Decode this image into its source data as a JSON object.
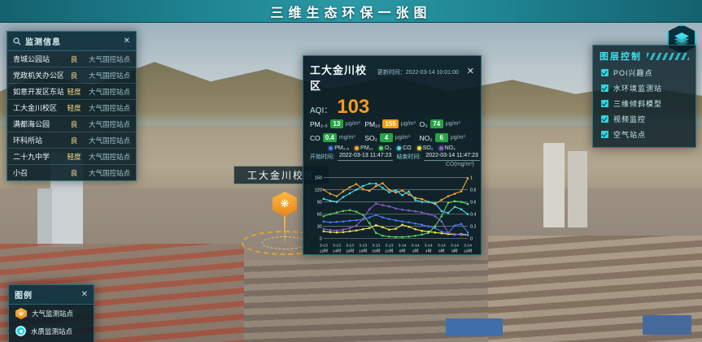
{
  "header": {
    "title": "三维生态环保一张图"
  },
  "station_panel": {
    "title": "监测信息",
    "close_label": "✕",
    "rows": [
      {
        "name": "青城公园站",
        "level": "良",
        "type": "大气国控站点"
      },
      {
        "name": "党政机关办公区",
        "level": "良",
        "type": "大气国控站点"
      },
      {
        "name": "如意开发区东站",
        "level": "轻度",
        "type": "大气国控站点"
      },
      {
        "name": "工大金川校区",
        "level": "轻度",
        "type": "大气国控站点"
      },
      {
        "name": "满都海公园",
        "level": "良",
        "type": "大气国控站点"
      },
      {
        "name": "环科所站",
        "level": "良",
        "type": "大气国控站点"
      },
      {
        "name": "二十九中学",
        "level": "轻度",
        "type": "大气国控站点"
      },
      {
        "name": "小召",
        "level": "良",
        "type": "大气国控站点"
      }
    ]
  },
  "popup": {
    "title": "工大金川校区",
    "update_label": "更新时间：",
    "update_time": "2022-03-14 10:01:00",
    "close_label": "✕",
    "aqi_label": "AQI：",
    "aqi_value": "103",
    "pollutants": [
      {
        "label": "PM₂.₅",
        "value": "13",
        "unit": "μg/m³",
        "color": "#27a344"
      },
      {
        "label": "PM₁₀",
        "value": "155",
        "unit": "μg/m³",
        "color": "#ef9c1f"
      },
      {
        "label": "O₃",
        "value": "74",
        "unit": "μg/m³",
        "color": "#27a344"
      },
      {
        "label": "CO",
        "value": "0.4",
        "unit": "mg/m³",
        "color": "#27a344"
      },
      {
        "label": "SO₂",
        "value": "4",
        "unit": "μg/m³",
        "color": "#27a344"
      },
      {
        "label": "NO₂",
        "value": "6",
        "unit": "μg/m³",
        "color": "#27a344"
      }
    ],
    "start_label": "开始时间:",
    "start_time": "2022-03-13 11:47:23",
    "end_label": "结束时间:",
    "end_time": "2022-03-14 11:47:23"
  },
  "chart_data": {
    "type": "line",
    "right_axis_label": "CO(mg/m³)",
    "ylim_left": [
      0,
      150
    ],
    "ylim_right": [
      0,
      1
    ],
    "yticks_left": [
      150,
      120,
      90,
      60,
      30,
      0
    ],
    "yticks_right": [
      1,
      0.8,
      0.6,
      0.4,
      0.2,
      0
    ],
    "grid": true,
    "legend_position": "top",
    "x": [
      "3-13 12时",
      "3-13 13时",
      "3-13 14时",
      "3-13 15时",
      "3-13 16时",
      "3-13 17时",
      "3-13 18时",
      "3-13 19时",
      "3-13 20时",
      "3-13 21时",
      "3-13 22时",
      "3-13 23时",
      "3-14 0时",
      "3-14 1时",
      "3-14 2时",
      "3-14 3时",
      "3-14 4时",
      "3-14 5时",
      "3-14 6时",
      "3-14 7时",
      "3-14 8时",
      "3-14 9时",
      "3-14 10时"
    ],
    "series": [
      {
        "name": "PM₂.₅",
        "axis": "left",
        "color": "#4d7bf3",
        "values": [
          42,
          40,
          41,
          42,
          44,
          45,
          47,
          52,
          58,
          52,
          48,
          45,
          42,
          40,
          37,
          34,
          30,
          26,
          17,
          14,
          32,
          36,
          15
        ]
      },
      {
        "name": "PM₁₀",
        "axis": "left",
        "color": "#f5a93c",
        "values": [
          120,
          110,
          104,
          116,
          126,
          134,
          121,
          117,
          129,
          136,
          120,
          113,
          118,
          108,
          100,
          97,
          90,
          85,
          95,
          104,
          110,
          116,
          148
        ]
      },
      {
        "name": "O₃",
        "axis": "left",
        "color": "#58d65c",
        "values": [
          55,
          60,
          64,
          68,
          70,
          66,
          58,
          38,
          14,
          7,
          5,
          4,
          4,
          5,
          7,
          10,
          14,
          30,
          55,
          88,
          92,
          90,
          85
        ]
      },
      {
        "name": "CO",
        "axis": "right",
        "color": "#4fd8e8",
        "values": [
          0.65,
          0.62,
          0.6,
          0.68,
          0.74,
          0.8,
          0.86,
          0.9,
          0.9,
          0.83,
          0.76,
          0.79,
          0.71,
          0.77,
          0.63,
          0.6,
          0.6,
          0.58,
          0.45,
          0.42,
          0.52,
          0.48,
          0.4
        ]
      },
      {
        "name": "SO₂",
        "axis": "left",
        "color": "#f0e14a",
        "values": [
          18,
          16,
          15,
          16,
          18,
          20,
          23,
          26,
          33,
          28,
          22,
          24,
          34,
          29,
          23,
          19,
          17,
          15,
          13,
          11,
          10,
          11,
          9
        ]
      },
      {
        "name": "NO₂",
        "axis": "left",
        "color": "#8a5fd0",
        "values": [
          24,
          21,
          20,
          22,
          26,
          32,
          48,
          72,
          86,
          82,
          79,
          74,
          71,
          69,
          67,
          64,
          60,
          55,
          42,
          14,
          11,
          9,
          8
        ]
      }
    ]
  },
  "layer_panel": {
    "title": "图层控制",
    "items": [
      {
        "label": "POI兴趣点",
        "checked": true
      },
      {
        "label": "水环境监测站",
        "checked": true
      },
      {
        "label": "三维倾斜模型",
        "checked": true
      },
      {
        "label": "视频监控",
        "checked": true
      },
      {
        "label": "空气站点",
        "checked": true
      }
    ]
  },
  "legend_panel": {
    "title": "图例",
    "close_label": "✕",
    "items": [
      {
        "icon": "air-station-hex-orange",
        "label": "大气监测站点"
      },
      {
        "icon": "water-station-circle-cyan",
        "label": "水质监测站点"
      }
    ]
  },
  "marker": {
    "label": "工大金川校区",
    "glyph": "❋"
  },
  "colors": {
    "accent_cyan": "#2fd4e2",
    "aqi_orange": "#f59a23",
    "header_teal": "#2b9aa6",
    "marker_orange": "#f0a32e"
  }
}
